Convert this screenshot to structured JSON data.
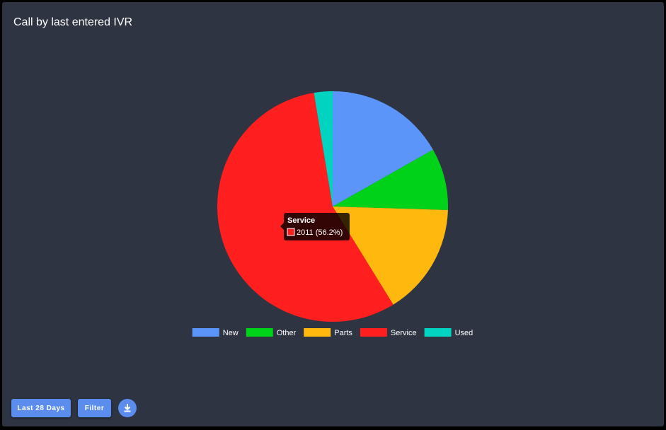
{
  "chart_data": {
    "type": "pie",
    "title": "Call by last entered IVR",
    "categories": [
      "New",
      "Other",
      "Parts",
      "Service",
      "Used"
    ],
    "values": [
      601,
      311,
      562,
      2011,
      93
    ],
    "colors": [
      "#5b95f9",
      "#00d21a",
      "#ffb80d",
      "#ff1f1f",
      "#00d3c0"
    ],
    "tooltip": {
      "title": "Service",
      "label": "2011 (56.2%)"
    }
  },
  "buttons": [
    "Last 28 Days",
    "Filter"
  ]
}
